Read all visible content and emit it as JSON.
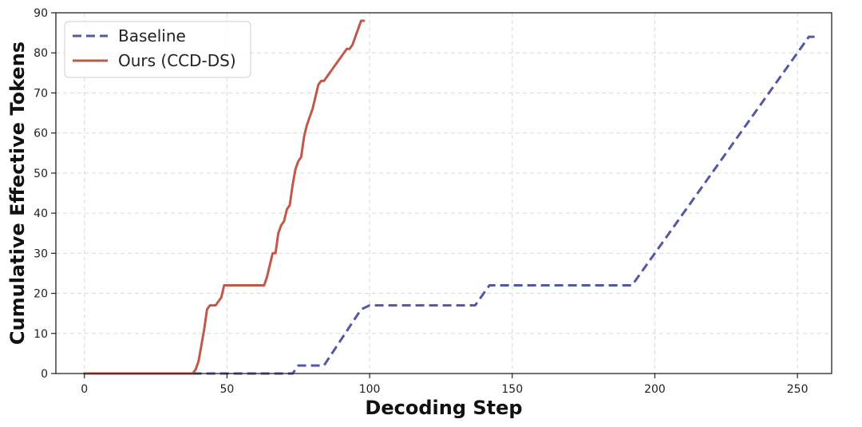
{
  "chart_data": {
    "type": "line",
    "title": "",
    "xlabel": "Decoding Step",
    "ylabel": "Cumulative Effective Tokens",
    "xlim": [
      -10,
      262
    ],
    "ylim": [
      0,
      90
    ],
    "xticks": [
      0,
      50,
      100,
      150,
      200,
      250
    ],
    "yticks": [
      0,
      10,
      20,
      30,
      40,
      50,
      60,
      70,
      80,
      90
    ],
    "grid": true,
    "legend_position": "upper-left",
    "series": [
      {
        "name": "Baseline",
        "color": "#5358a0",
        "style": "dashed",
        "x": [
          0,
          73,
          75,
          84,
          97,
          100,
          137,
          142,
          192,
          254,
          256
        ],
        "y": [
          0,
          0,
          2,
          2,
          16,
          17,
          17,
          22,
          22,
          84,
          84
        ]
      },
      {
        "name": "Ours (CCD-DS)",
        "color": "#c0594a",
        "style": "solid",
        "x": [
          0,
          38,
          39,
          40,
          41,
          42,
          43,
          44,
          45,
          46,
          47,
          48,
          49,
          50,
          55,
          60,
          63,
          64,
          65,
          66,
          67,
          68,
          69,
          70,
          71,
          72,
          73,
          74,
          75,
          76,
          77,
          78,
          79,
          80,
          81,
          82,
          83,
          84,
          85,
          86,
          87,
          88,
          89,
          90,
          91,
          92,
          93,
          94,
          95,
          96,
          97,
          98
        ],
        "y": [
          0,
          0,
          1,
          3,
          7,
          11,
          16,
          17,
          17,
          17,
          18,
          19,
          22,
          22,
          22,
          22,
          22,
          24,
          27,
          30,
          30,
          35,
          37,
          38,
          41,
          42,
          47,
          51,
          53,
          54,
          59,
          62,
          64,
          66,
          69,
          72,
          73,
          73,
          74,
          75,
          76,
          77,
          78,
          79,
          80,
          81,
          81,
          82,
          84,
          86,
          88,
          88
        ]
      }
    ]
  }
}
